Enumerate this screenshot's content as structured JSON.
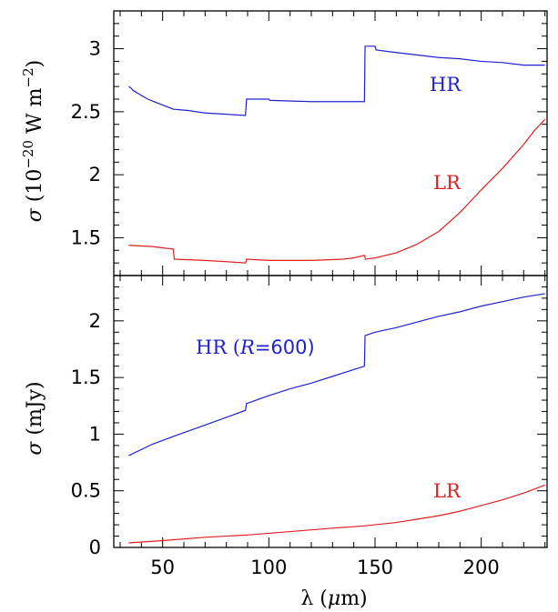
{
  "chart_data": [
    {
      "type": "line",
      "panel": "top",
      "ylabel": "σ (10⁻²⁰ W m⁻²)",
      "xlim": [
        27,
        231
      ],
      "ylim": [
        1.2,
        3.3
      ],
      "yticks_major": [
        1.5,
        2,
        2.5,
        3
      ],
      "grid": false,
      "series": [
        {
          "name": "HR",
          "color": "#2020d0",
          "points": [
            [
              34,
              2.7
            ],
            [
              35,
              2.69
            ],
            [
              36,
              2.67
            ],
            [
              37,
              2.66
            ],
            [
              39,
              2.64
            ],
            [
              41,
              2.62
            ],
            [
              43,
              2.6
            ],
            [
              46,
              2.58
            ],
            [
              49,
              2.56
            ],
            [
              52,
              2.54
            ],
            [
              55,
              2.52
            ],
            [
              62,
              2.51
            ],
            [
              70,
              2.49
            ],
            [
              80,
              2.48
            ],
            [
              89,
              2.47
            ],
            [
              89.5,
              2.6
            ],
            [
              100,
              2.6
            ],
            [
              100.5,
              2.59
            ],
            [
              120,
              2.58
            ],
            [
              135,
              2.58
            ],
            [
              145,
              2.58
            ],
            [
              145.3,
              3.02
            ],
            [
              150,
              3.02
            ],
            [
              150.5,
              2.99
            ],
            [
              160,
              2.97
            ],
            [
              170,
              2.95
            ],
            [
              180,
              2.93
            ],
            [
              190,
              2.92
            ],
            [
              200,
              2.9
            ],
            [
              210,
              2.89
            ],
            [
              220,
              2.87
            ],
            [
              230,
              2.87
            ]
          ]
        },
        {
          "name": "LR",
          "color": "#e02020",
          "points": [
            [
              34,
              1.44
            ],
            [
              45,
              1.43
            ],
            [
              55,
              1.41
            ],
            [
              55.5,
              1.33
            ],
            [
              70,
              1.32
            ],
            [
              80,
              1.31
            ],
            [
              89,
              1.3
            ],
            [
              89.5,
              1.33
            ],
            [
              100,
              1.32
            ],
            [
              120,
              1.32
            ],
            [
              135,
              1.33
            ],
            [
              140,
              1.34
            ],
            [
              145,
              1.36
            ],
            [
              145.5,
              1.33
            ],
            [
              150,
              1.34
            ],
            [
              160,
              1.38
            ],
            [
              170,
              1.45
            ],
            [
              180,
              1.55
            ],
            [
              190,
              1.7
            ],
            [
              200,
              1.88
            ],
            [
              210,
              2.05
            ],
            [
              220,
              2.24
            ],
            [
              225,
              2.35
            ],
            [
              230,
              2.44
            ]
          ]
        }
      ]
    },
    {
      "type": "line",
      "panel": "bottom",
      "xlabel": "λ (μm)",
      "ylabel": "σ (mJy)",
      "xlim": [
        27,
        231
      ],
      "ylim": [
        0,
        2.4
      ],
      "xticks_major": [
        50,
        100,
        150,
        200
      ],
      "yticks_major": [
        0,
        0.5,
        1,
        1.5,
        2
      ],
      "grid": false,
      "series": [
        {
          "name": "HR (R=600)",
          "color": "#2020d0",
          "points": [
            [
              34,
              0.81
            ],
            [
              45,
              0.91
            ],
            [
              55,
              0.98
            ],
            [
              70,
              1.08
            ],
            [
              89,
              1.21
            ],
            [
              89.5,
              1.27
            ],
            [
              100,
              1.34
            ],
            [
              110,
              1.4
            ],
            [
              120,
              1.45
            ],
            [
              130,
              1.51
            ],
            [
              145,
              1.6
            ],
            [
              145.3,
              1.87
            ],
            [
              150,
              1.9
            ],
            [
              160,
              1.94
            ],
            [
              170,
              1.99
            ],
            [
              180,
              2.04
            ],
            [
              190,
              2.08
            ],
            [
              200,
              2.13
            ],
            [
              210,
              2.17
            ],
            [
              220,
              2.21
            ],
            [
              230,
              2.24
            ]
          ]
        },
        {
          "name": "LR",
          "color": "#e02020",
          "points": [
            [
              34,
              0.04
            ],
            [
              50,
              0.06
            ],
            [
              70,
              0.09
            ],
            [
              90,
              0.11
            ],
            [
              110,
              0.14
            ],
            [
              130,
              0.17
            ],
            [
              145,
              0.19
            ],
            [
              150,
              0.2
            ],
            [
              160,
              0.22
            ],
            [
              170,
              0.25
            ],
            [
              180,
              0.28
            ],
            [
              190,
              0.32
            ],
            [
              200,
              0.37
            ],
            [
              210,
              0.42
            ],
            [
              220,
              0.48
            ],
            [
              230,
              0.55
            ]
          ]
        }
      ]
    }
  ]
}
